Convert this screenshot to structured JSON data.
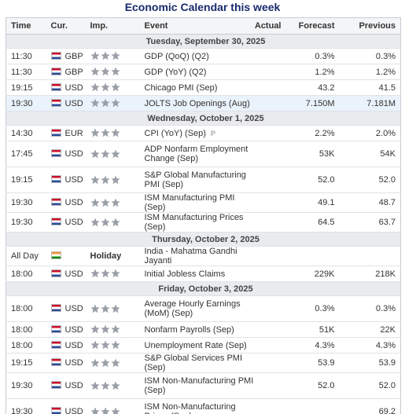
{
  "title": "Economic Calendar this week",
  "columns": [
    "Time",
    "Cur.",
    "Imp.",
    "Event",
    "Actual",
    "Forecast",
    "Previous"
  ],
  "days": [
    {
      "title": "Tuesday, September 30, 2025",
      "events": [
        {
          "time": "11:30",
          "currency": "GBP",
          "event": "GDP (QoQ) (Q2)",
          "forecast": "0.3%",
          "previous": "0.3%"
        },
        {
          "time": "11:30",
          "currency": "GBP",
          "event": "GDP (YoY) (Q2)",
          "forecast": "1.2%",
          "previous": "1.2%"
        },
        {
          "time": "19:15",
          "currency": "USD",
          "event": "Chicago PMI (Sep)",
          "forecast": "43.2",
          "previous": "41.5"
        },
        {
          "time": "19:30",
          "currency": "USD",
          "event": "JOLTS Job Openings (Aug)",
          "forecast": "7.150M",
          "previous": "7.181M",
          "highlight": true
        }
      ]
    },
    {
      "title": "Wednesday, October 1, 2025",
      "events": [
        {
          "time": "14:30",
          "currency": "EUR",
          "event": "CPI (YoY) (Sep)",
          "badge": "P",
          "forecast": "2.2%",
          "previous": "2.0%"
        },
        {
          "time": "17:45",
          "currency": "USD",
          "event": "ADP Nonfarm Employment Change (Sep)",
          "forecast": "53K",
          "previous": "54K",
          "tall": true
        },
        {
          "time": "19:15",
          "currency": "USD",
          "event": "S&P Global Manufacturing PMI (Sep)",
          "forecast": "52.0",
          "previous": "52.0",
          "tall": true
        },
        {
          "time": "19:30",
          "currency": "USD",
          "event": "ISM Manufacturing PMI (Sep)",
          "forecast": "49.1",
          "previous": "48.7"
        },
        {
          "time": "19:30",
          "currency": "USD",
          "event": "ISM Manufacturing Prices (Sep)",
          "forecast": "64.5",
          "previous": "63.7"
        }
      ]
    },
    {
      "title": "Thursday, October 2, 2025",
      "events": [
        {
          "time": "All Day",
          "importance": "Holiday",
          "event": "India - Mahatma Gandhi Jayanti"
        },
        {
          "time": "18:00",
          "currency": "USD",
          "event": "Initial Jobless Claims",
          "forecast": "229K",
          "previous": "218K"
        }
      ]
    },
    {
      "title": "Friday, October 3, 2025",
      "events": [
        {
          "time": "18:00",
          "currency": "USD",
          "event": "Average Hourly Earnings (MoM) (Sep)",
          "forecast": "0.3%",
          "previous": "0.3%",
          "tall": true
        },
        {
          "time": "18:00",
          "currency": "USD",
          "event": "Nonfarm Payrolls (Sep)",
          "forecast": "51K",
          "previous": "22K"
        },
        {
          "time": "18:00",
          "currency": "USD",
          "event": "Unemployment Rate (Sep)",
          "forecast": "4.3%",
          "previous": "4.3%"
        },
        {
          "time": "19:15",
          "currency": "USD",
          "event": "S&P Global Services PMI (Sep)",
          "forecast": "53.9",
          "previous": "53.9"
        },
        {
          "time": "19:30",
          "currency": "USD",
          "event": "ISM Non-Manufacturing PMI (Sep)",
          "forecast": "52.0",
          "previous": "52.0",
          "tall": true
        },
        {
          "time": "19:30",
          "currency": "USD",
          "event": "ISM Non-Manufacturing Prices (Sep)",
          "previous": "69.2",
          "tall": true
        }
      ]
    }
  ]
}
